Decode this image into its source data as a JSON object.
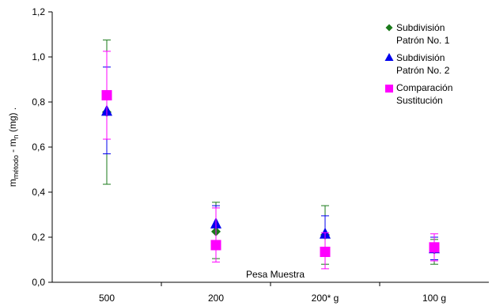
{
  "chart_data": {
    "type": "scatter",
    "categories": [
      "500",
      "200",
      "200* g",
      "100 g"
    ],
    "xlabel": "Pesa Muestra",
    "ylabel_main": "m",
    "ylabel_sub1": "método",
    "ylabel_mid": " - m",
    "ylabel_sub2": "n",
    "ylabel_unit": " (mg) .",
    "ylim": [
      0.0,
      1.2
    ],
    "yticks": [
      "0,0",
      "0,2",
      "0,4",
      "0,6",
      "0,8",
      "1,0",
      "1,2"
    ],
    "ytick_values": [
      0.0,
      0.2,
      0.4,
      0.6,
      0.8,
      1.0,
      1.2
    ],
    "grid": false,
    "legend_position": "top-right",
    "series": [
      {
        "legend_line1": "Subdivisión",
        "legend_line2": "Patrón No. 1",
        "marker": "diamond",
        "color": "#1a7a1a",
        "values": [
          0.755,
          0.225,
          0.21,
          0.145
        ],
        "err_low": [
          0.435,
          0.105,
          0.08,
          0.08
        ],
        "err_high": [
          1.075,
          0.355,
          0.34,
          0.19
        ]
      },
      {
        "legend_line1": "Subdivisión",
        "legend_line2": "Patrón No. 2",
        "marker": "triangle",
        "color": "#0000ee",
        "values": [
          0.76,
          0.26,
          0.215,
          0.15
        ],
        "err_low": [
          0.57,
          0.18,
          0.13,
          0.1
        ],
        "err_high": [
          0.955,
          0.34,
          0.295,
          0.2
        ]
      },
      {
        "legend_line1": "Comparación",
        "legend_line2": "Sustitución",
        "marker": "square",
        "color": "#ff00ff",
        "values": [
          0.83,
          0.165,
          0.135,
          0.155
        ],
        "err_low": [
          0.635,
          0.09,
          0.06,
          0.095
        ],
        "err_high": [
          1.025,
          0.33,
          0.22,
          0.215
        ]
      }
    ]
  }
}
